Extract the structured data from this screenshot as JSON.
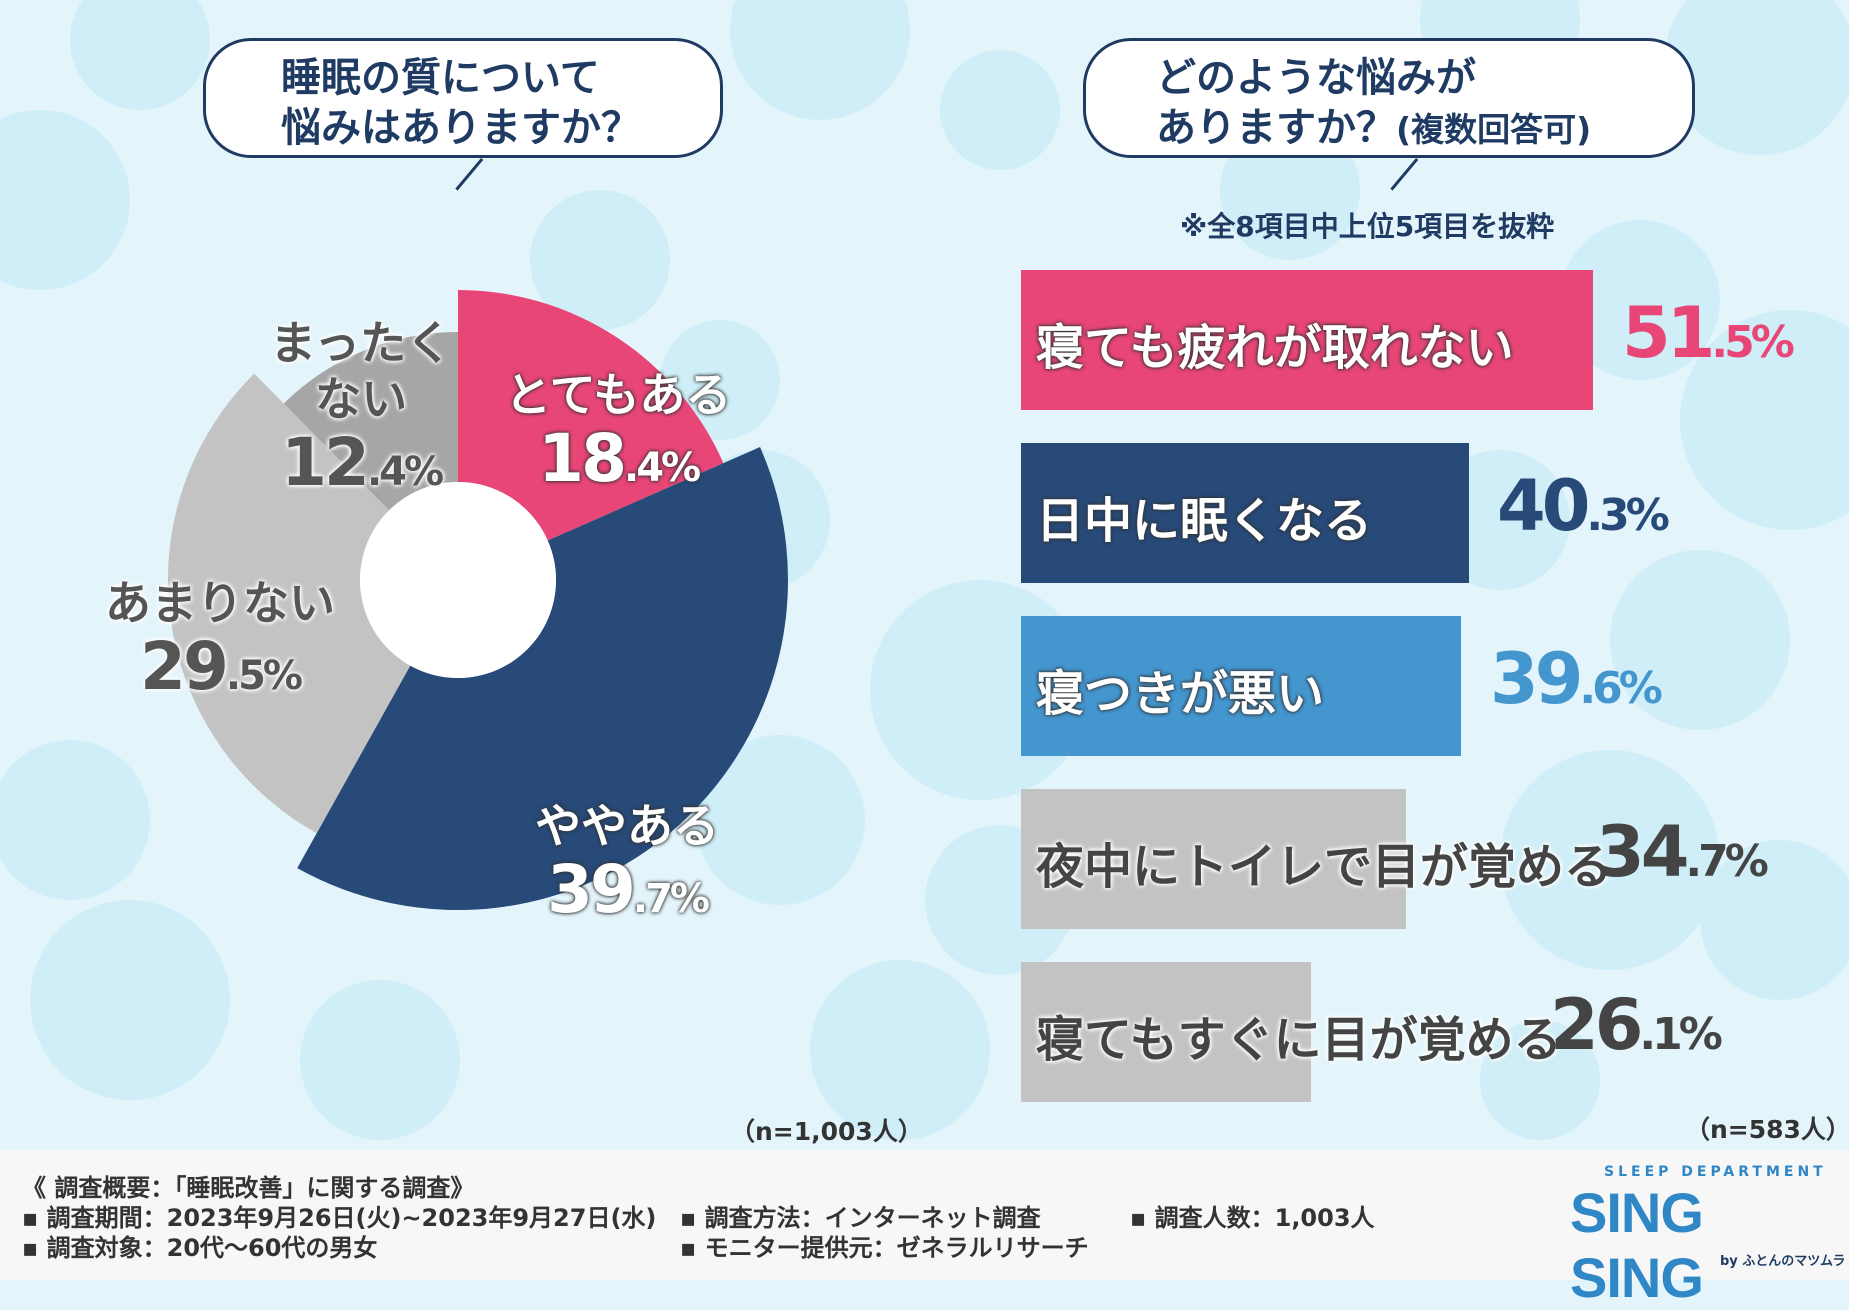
{
  "left_question": {
    "line1": "睡眠の質について",
    "line2": "悩みはありますか？"
  },
  "right_question": {
    "line1": "どのような悩みが",
    "line2": "ありますか？",
    "line2_paren": "(複数回答可)"
  },
  "right_note": "※全8項目中上位5項目を抜粋",
  "left_n": "（n=1,003人）",
  "right_n": "（n=583人）",
  "chart_data": [
    {
      "type": "pie",
      "title": "睡眠の質について悩みはありますか？",
      "donut": true,
      "categories": [
        "とてもある",
        "ややある",
        "あまりない",
        "まったくない"
      ],
      "values": [
        18.4,
        39.7,
        29.5,
        12.4
      ],
      "value_labels": [
        {
          "int": "18",
          "dec": ".4%"
        },
        {
          "int": "39",
          "dec": ".7%"
        },
        {
          "int": "29",
          "dec": ".5%"
        },
        {
          "int": "12",
          "dec": ".4%"
        }
      ],
      "colors": [
        "#e84677",
        "#284a79",
        "#c3c3c3",
        "#a6a6a6"
      ],
      "name_lines": [
        [
          "とてもある"
        ],
        [
          "ややある"
        ],
        [
          "あまりない"
        ],
        [
          "まったく",
          "ない"
        ]
      ]
    },
    {
      "type": "bar",
      "orientation": "horizontal",
      "title": "どのような悩みがありますか？(複数回答可)",
      "categories": [
        "寝ても疲れが取れない",
        "日中に眠くなる",
        "寝つきが悪い",
        "夜中にトイレで目が覚める",
        "寝てもすぐに目が覚める"
      ],
      "values": [
        51.5,
        40.3,
        39.6,
        34.7,
        26.1
      ],
      "value_labels": [
        {
          "int": "51",
          "dec": ".5%"
        },
        {
          "int": "40",
          "dec": ".3%"
        },
        {
          "int": "39",
          "dec": ".6%"
        },
        {
          "int": "34",
          "dec": ".7%"
        },
        {
          "int": "26",
          "dec": ".1%"
        }
      ],
      "colors": [
        "#e84677",
        "#284a79",
        "#4496cf",
        "#c3c3c3",
        "#c3c3c3"
      ],
      "value_colors": [
        "#e84677",
        "#284a79",
        "#4496cf",
        "#444444",
        "#444444"
      ],
      "xlim": [
        0,
        60
      ]
    }
  ],
  "footer": {
    "heading": "《 調査概要：「睡眠改善」に関する調査》",
    "period": "▪ 調査期間：2023年9月26日(火)~2023年9月27日(水)",
    "target": "▪ 調査対象：20代～60代の男女",
    "method": "▪ 調査方法：インターネット調査",
    "provider": "▪ モニター提供元：ゼネラルリサーチ",
    "count": "▪ 調査人数：1,003人"
  },
  "logo": {
    "dept": "SLEEP DEPARTMENT",
    "main": "SING SING",
    "sub": "by ふとんのマツムラ"
  }
}
